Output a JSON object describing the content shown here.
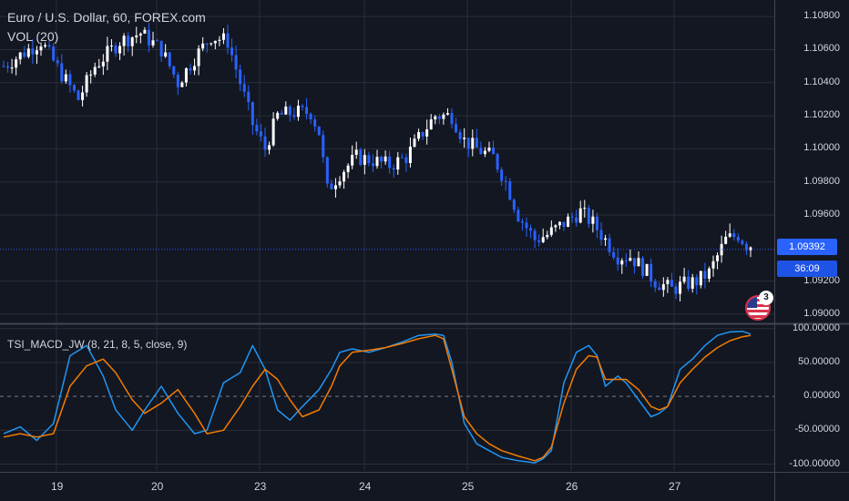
{
  "header": {
    "title": "Euro / U.S. Dollar, 60, FOREX.com",
    "volume_label": "VOL (20)"
  },
  "indicator": {
    "title": "TSI_MACD_JW (8, 21, 8, 5, close, 9)"
  },
  "price_axis": {
    "labels": [
      "1.10800",
      "1.10600",
      "1.10400",
      "1.10200",
      "1.10000",
      "1.09800",
      "1.09600",
      "1.09200",
      "1.09000"
    ],
    "current_price": "1.09392",
    "countdown": "36:09"
  },
  "indicator_axis": {
    "labels": [
      "100.00000",
      "50.00000",
      "0.00000",
      "-50.00000",
      "-100.00000"
    ]
  },
  "time_axis": {
    "labels": [
      "19",
      "20",
      "23",
      "24",
      "25",
      "26",
      "27"
    ]
  },
  "events": {
    "count": "3"
  },
  "colors": {
    "background": "#131722",
    "bull_candle": "#ffffff",
    "bear_candle": "#2962ff",
    "tsi_line": "#2196f3",
    "signal_line": "#f57c00",
    "grid": "#2a2e39",
    "price_tag": "#2962ff"
  },
  "chart_data": [
    {
      "type": "candlestick",
      "title": "Euro / U.S. Dollar, 60, FOREX.com",
      "ylim": [
        1.0895,
        1.109
      ],
      "x": [
        "19",
        "20",
        "23",
        "24",
        "25",
        "26",
        "27"
      ],
      "current_price": 1.09392,
      "close_path": [
        [
          0,
          1.105
        ],
        [
          9,
          1.1065
        ],
        [
          14,
          1.1045
        ],
        [
          18,
          1.103
        ],
        [
          22,
          1.105
        ],
        [
          28,
          1.1065
        ],
        [
          33,
          1.107
        ],
        [
          38,
          1.106
        ],
        [
          42,
          1.104
        ],
        [
          46,
          1.1055
        ],
        [
          50,
          1.1068
        ],
        [
          54,
          1.1065
        ],
        [
          57,
          1.104
        ],
        [
          60,
          1.1015
        ],
        [
          63,
          1.1
        ],
        [
          66,
          1.102
        ],
        [
          70,
          1.1022
        ],
        [
          74,
          1.1022
        ],
        [
          76,
          1.101
        ],
        [
          78,
          1.0975
        ],
        [
          81,
          1.0985
        ],
        [
          85,
          1.0995
        ],
        [
          89,
          1.0993
        ],
        [
          93,
          1.099
        ],
        [
          97,
          1.0995
        ],
        [
          101,
          1.101
        ],
        [
          104,
          1.102
        ],
        [
          108,
          1.102
        ],
        [
          111,
          1.1005
        ],
        [
          114,
          1.1
        ],
        [
          118,
          1.0995
        ],
        [
          121,
          1.098
        ],
        [
          124,
          1.096
        ],
        [
          128,
          1.0945
        ],
        [
          131,
          1.0948
        ],
        [
          135,
          1.0955
        ],
        [
          139,
          1.0962
        ],
        [
          142,
          1.0955
        ],
        [
          145,
          1.0945
        ],
        [
          148,
          1.0935
        ],
        [
          151,
          1.0935
        ],
        [
          154,
          1.0928
        ],
        [
          157,
          1.092
        ],
        [
          161,
          1.0915
        ],
        [
          164,
          1.0918
        ],
        [
          167,
          1.092
        ],
        [
          170,
          1.0925
        ],
        [
          174,
          1.0945
        ],
        [
          177,
          1.0948
        ],
        [
          179,
          1.0942
        ]
      ]
    },
    {
      "type": "line",
      "title": "TSI_MACD_JW (8, 21, 8, 5, close, 9)",
      "ylim": [
        -110,
        105
      ],
      "series": [
        {
          "points": [
            [
              0,
              -55
            ],
            [
              4,
              -45
            ],
            [
              8,
              -65
            ],
            [
              12,
              -40
            ],
            [
              16,
              60
            ],
            [
              20,
              75
            ],
            [
              24,
              30
            ],
            [
              27,
              -20
            ],
            [
              31,
              -50
            ],
            [
              34,
              -20
            ],
            [
              38,
              15
            ],
            [
              42,
              -25
            ],
            [
              46,
              -55
            ],
            [
              49,
              -50
            ],
            [
              53,
              20
            ],
            [
              57,
              35
            ],
            [
              60,
              75
            ],
            [
              63,
              40
            ],
            [
              66,
              -20
            ],
            [
              69,
              -35
            ],
            [
              72,
              -15
            ],
            [
              76,
              10
            ],
            [
              79,
              40
            ],
            [
              81,
              65
            ],
            [
              84,
              70
            ],
            [
              88,
              65
            ],
            [
              92,
              72
            ],
            [
              96,
              80
            ],
            [
              100,
              90
            ],
            [
              104,
              92
            ],
            [
              106,
              90
            ],
            [
              108,
              50
            ],
            [
              111,
              -40
            ],
            [
              114,
              -70
            ],
            [
              117,
              -80
            ],
            [
              120,
              -90
            ],
            [
              124,
              -95
            ],
            [
              128,
              -98
            ],
            [
              130,
              -92
            ],
            [
              132,
              -80
            ],
            [
              135,
              20
            ],
            [
              138,
              65
            ],
            [
              141,
              75
            ],
            [
              143,
              60
            ],
            [
              145,
              15
            ],
            [
              148,
              30
            ],
            [
              150,
              20
            ],
            [
              153,
              -5
            ],
            [
              156,
              -30
            ],
            [
              158,
              -25
            ],
            [
              160,
              -15
            ],
            [
              163,
              40
            ],
            [
              166,
              55
            ],
            [
              169,
              75
            ],
            [
              172,
              90
            ],
            [
              175,
              95
            ],
            [
              178,
              96
            ],
            [
              180,
              92
            ]
          ]
        },
        {
          "points": [
            [
              0,
              -60
            ],
            [
              4,
              -55
            ],
            [
              8,
              -60
            ],
            [
              12,
              -55
            ],
            [
              16,
              15
            ],
            [
              20,
              45
            ],
            [
              24,
              55
            ],
            [
              27,
              35
            ],
            [
              31,
              -5
            ],
            [
              34,
              -25
            ],
            [
              38,
              -10
            ],
            [
              42,
              10
            ],
            [
              46,
              -25
            ],
            [
              49,
              -55
            ],
            [
              53,
              -50
            ],
            [
              57,
              -15
            ],
            [
              60,
              15
            ],
            [
              63,
              40
            ],
            [
              66,
              25
            ],
            [
              69,
              -5
            ],
            [
              72,
              -30
            ],
            [
              76,
              -20
            ],
            [
              79,
              15
            ],
            [
              81,
              45
            ],
            [
              84,
              65
            ],
            [
              88,
              68
            ],
            [
              92,
              72
            ],
            [
              96,
              78
            ],
            [
              100,
              85
            ],
            [
              104,
              90
            ],
            [
              106,
              85
            ],
            [
              108,
              40
            ],
            [
              111,
              -30
            ],
            [
              114,
              -55
            ],
            [
              117,
              -70
            ],
            [
              120,
              -80
            ],
            [
              124,
              -88
            ],
            [
              128,
              -95
            ],
            [
              130,
              -90
            ],
            [
              132,
              -75
            ],
            [
              135,
              -10
            ],
            [
              138,
              40
            ],
            [
              141,
              60
            ],
            [
              143,
              58
            ],
            [
              145,
              25
            ],
            [
              148,
              25
            ],
            [
              150,
              25
            ],
            [
              153,
              10
            ],
            [
              156,
              -15
            ],
            [
              158,
              -20
            ],
            [
              160,
              -15
            ],
            [
              163,
              20
            ],
            [
              166,
              40
            ],
            [
              169,
              58
            ],
            [
              172,
              72
            ],
            [
              175,
              82
            ],
            [
              178,
              88
            ],
            [
              180,
              90
            ]
          ]
        }
      ]
    }
  ]
}
